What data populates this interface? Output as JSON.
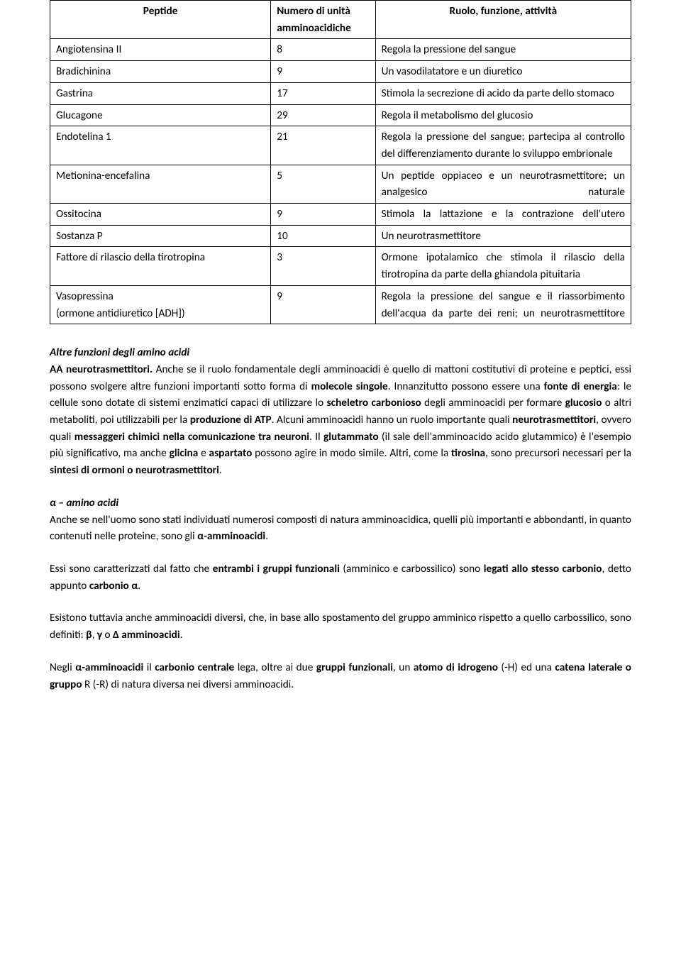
{
  "table": {
    "columns": [
      "Peptide",
      "Numero di unità amminoacidiche",
      "Ruolo, funzione, attività"
    ],
    "rows": [
      {
        "peptide": "Angiotensina II",
        "n": "8",
        "role": "Regola la pressione del sangue",
        "justify": "left"
      },
      {
        "peptide": "Bradichinina",
        "n": "9",
        "role": "Un vasodilatatore e un diuretico",
        "justify": "left"
      },
      {
        "peptide": "Gastrina",
        "n": "17",
        "role": "Stimola la secrezione di acido da parte dello stomaco",
        "justify": "justify-normal"
      },
      {
        "peptide": "Glucagone",
        "n": "29",
        "role": "Regola il metabolismo del glucosio",
        "justify": "left"
      },
      {
        "peptide": "Endotelina 1",
        "n": "21",
        "role": "Regola la pressione del sangue; partecipa al controllo del differenziamento durante lo sviluppo embrionale",
        "justify": "justify-normal"
      },
      {
        "peptide": "Metionina-encefalina",
        "n": "5",
        "role": "Un peptide oppiaceo e un neurotrasmettitore; un analgesico naturale",
        "justify": "justify"
      },
      {
        "peptide": "Ossitocina",
        "n": "9",
        "role": "Stimola la lattazione e la contrazione dell'utero",
        "justify": "justify"
      },
      {
        "peptide": "Sostanza P",
        "n": "10",
        "role": "Un neurotrasmettitore",
        "justify": "left"
      },
      {
        "peptide": "Fattore di rilascio della tirotropina",
        "n": "3",
        "role": "Ormone ipotalamico che stimola il rilascio della tirotropina da parte della ghiandola pituitaria",
        "justify": "justify-normal"
      },
      {
        "peptide": "Vasopressina\n(ormone antidiuretico [ADH])",
        "n": "9",
        "role": "Regola la pressione del sangue e il riassorbimento dell'acqua da parte dei reni; un neurotrasmettitore",
        "justify": "justify"
      }
    ]
  },
  "sections": {
    "s1": {
      "heading": "Altre funzioni degli amino acidi",
      "html": "<span class='bold'>AA neurotrasmettitori.</span> Anche se il ruolo fondamentale degli amminoacidi è quello di mattoni costitutivi di proteine e peptici, essi possono svolgere altre funzioni importanti sotto forma di <span class='bold'>molecole singole</span>. Innanzitutto possono essere una <span class='bold'>fonte di energia</span>: le cellule sono dotate di sistemi enzimatici capaci di utilizzare lo <span class='bold'>scheletro carbonioso</span> degli amminoacidi per formare <span class='bold'>glucosio</span> o altri metaboliti, poi utilizzabili per la <span class='bold'>produzione di ATP</span>. Alcuni amminoacidi hanno un ruolo importante quali <span class='bold'>neurotrasmettitori</span>, ovvero quali <span class='bold'>messaggeri chimici nella comunicazione tra neuroni</span>. Il <span class='bold'>glutammato</span> (il sale dell'amminoacido acido glutammico) è l'esempio più significativo, ma anche <span class='bold'>glicina</span> e <span class='bold'>aspartato</span> possono agire in modo simile. Altri, come la <span class='bold'>tirosina</span>, sono precursori necessari per la <span class='bold'>sintesi di ormoni o neurotrasmettitori</span>."
    },
    "s2": {
      "heading": "α – amino acidi",
      "p1": "Anche se nell'uomo sono stati individuati numerosi composti di natura amminoacidica, quelli più importanti e abbondanti, in quanto contenuti nelle proteine, sono gli <span class='bold'>α-amminoacidi</span>.",
      "p2": "Essi sono caratterizzati dal fatto che <span class='bold'>entrambi i gruppi funzionali</span> (amminico e carbossilico) sono <span class='bold'>legati allo stesso carbonio</span>, detto appunto <span class='bold'>carbonio α</span>.",
      "p3": "Esistono tuttavia anche amminoacidi diversi, che, in base allo spostamento del gruppo amminico rispetto a quello carbossilico, sono definiti: <span class='bold'>β</span>, <span class='bold'>γ</span> o <span class='bold'>Δ amminoacidi</span>.",
      "p4": "Negli <span class='bold'>α-amminoacidi</span> il <span class='bold'>carbonio centrale</span> lega, oltre ai due <span class='bold'>gruppi funzionali</span>, un <span class='bold'>atomo di idrogeno</span> (-H) ed una <span class='bold'>catena laterale o gruppo</span> R (-R) di natura diversa nei diversi amminoacidi."
    }
  }
}
